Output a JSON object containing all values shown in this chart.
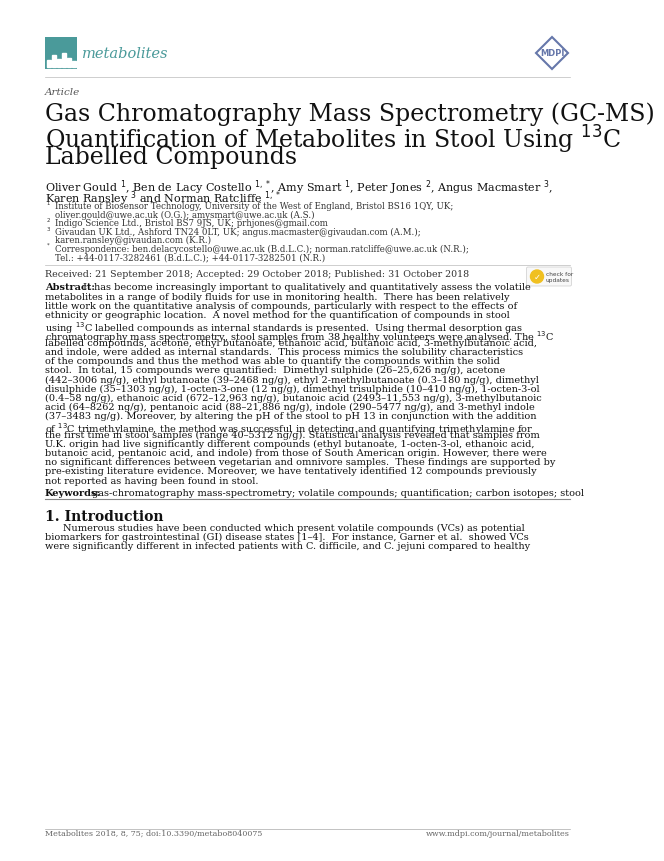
{
  "bg_color": "#ffffff",
  "header_logo_color": "#4a9a9a",
  "mdpi_color": "#6677aa",
  "article_label": "Article",
  "title_lines": [
    "Gas Chromatography Mass Spectrometry (GC-MS)",
    "Quantification of Metabolites in Stool Using $^{13}$C",
    "Labelled Compounds"
  ],
  "author_line1": "Oliver Gould $^{1}$, Ben de Lacy Costello $^{1,*}$, Amy Smart $^{1}$, Peter Jones $^{2}$, Angus Macmaster $^{3}$,",
  "author_line2": "Karen Ransley $^{3}$ and Norman Ratcliffe $^{1,*}$",
  "aff1a": "Institute of Biosensor Technology, University of the West of England, Bristol BS16 1QY, UK;",
  "aff1b": "oliver.gould@uwe.ac.uk (O.G.); amysmart@uwe.ac.uk (A.S.)",
  "aff2": "Indigo Science Ltd., Bristol BS7 9JS, UK; prhjones@gmail.com",
  "aff3a": "Givaudan UK Ltd., Ashford TN24 0LT, UK; angus.macmaster@givaudan.com (A.M.);",
  "aff3b": "karen.ransley@givaudan.com (K.R.)",
  "affc1": "Correspondence: ben.delacycostello@uwe.ac.uk (B.d.L.C.); norman.ratcliffe@uwe.ac.uk (N.R.);",
  "affc2": "Tel.: +44-0117-3282461 (B.d.L.C.); +44-0117-3282501 (N.R.)",
  "received": "Received: 21 September 2018; Accepted: 29 October 2018; Published: 31 October 2018",
  "abstract_label": "Abstract:",
  "abstract_lines": [
    "It has become increasingly important to qualitatively and quantitatively assess the volatile",
    "metabolites in a range of bodily fluids for use in monitoring health.  There has been relatively",
    "little work on the quantitative analysis of compounds, particularly with respect to the effects of",
    "ethnicity or geographic location.  A novel method for the quantification of compounds in stool",
    "using $^{13}$C labelled compounds as internal standards is presented.  Using thermal desorption gas",
    "chromatography mass spectrometry, stool samples from 38 healthy volunteers were analysed. The $^{13}$C",
    "labelled compounds, acetone, ethyl butanoate, ethanoic acid, butanoic acid, 3-methylbutanoic acid,",
    "and indole, were added as internal standards.  This process mimics the solubility characteristics",
    "of the compounds and thus the method was able to quantify the compounds within the solid",
    "stool.  In total, 15 compounds were quantified:  Dimethyl sulphide (26–25,626 ng/g), acetone",
    "(442–3006 ng/g), ethyl butanoate (39–2468 ng/g), ethyl 2-methylbutanoate (0.3–180 ng/g), dimethyl",
    "disulphide (35–1303 ng/g), 1-octen-3-one (12 ng/g), dimethyl trisulphide (10–410 ng/g), 1-octen-3-ol",
    "(0.4–58 ng/g), ethanoic acid (672–12,963 ng/g), butanoic acid (2493–11,553 ng/g), 3-methylbutanoic",
    "acid (64–8262 ng/g), pentanoic acid (88–21,886 ng/g), indole (290–5477 ng/g), and 3-methyl indole",
    "(37–3483 ng/g). Moreover, by altering the pH of the stool to pH 13 in conjunction with the addition",
    "of $^{13}$C trimethylamine, the method was successful in detecting and quantifying trimethylamine for",
    "the first time in stool samples (range 40–5312 ng/g). Statistical analysis revealed that samples from",
    "U.K. origin had live significantly different compounds (ethyl butanoate, 1-octen-3-ol, ethanoic acid,",
    "butanoic acid, pentanoic acid, and indole) from those of South American origin. However, there were",
    "no significant differences between vegetarian and omnivore samples.  These findings are supported by",
    "pre-existing literature evidence. Moreover, we have tentatively identified 12 compounds previously",
    "not reported as having been found in stool."
  ],
  "keywords_label": "Keywords:",
  "keywords_text": "gas-chromatography mass-spectrometry; volatile compounds; quantification; carbon isotopes; stool",
  "section1_title": "1. Introduction",
  "intro_lines": [
    "Numerous studies have been conducted which present volatile compounds (VCs) as potential",
    "biomarkers for gastrointestinal (GI) disease states [1–4].  For instance, Garner et al.  showed VCs",
    "were significantly different in infected patients with C. difficile, and C. jejuni compared to healthy"
  ],
  "footer_left": "Metabolites 2018, 8, 75; doi:10.3390/metabo8040075",
  "footer_right": "www.mdpi.com/journal/metabolites"
}
